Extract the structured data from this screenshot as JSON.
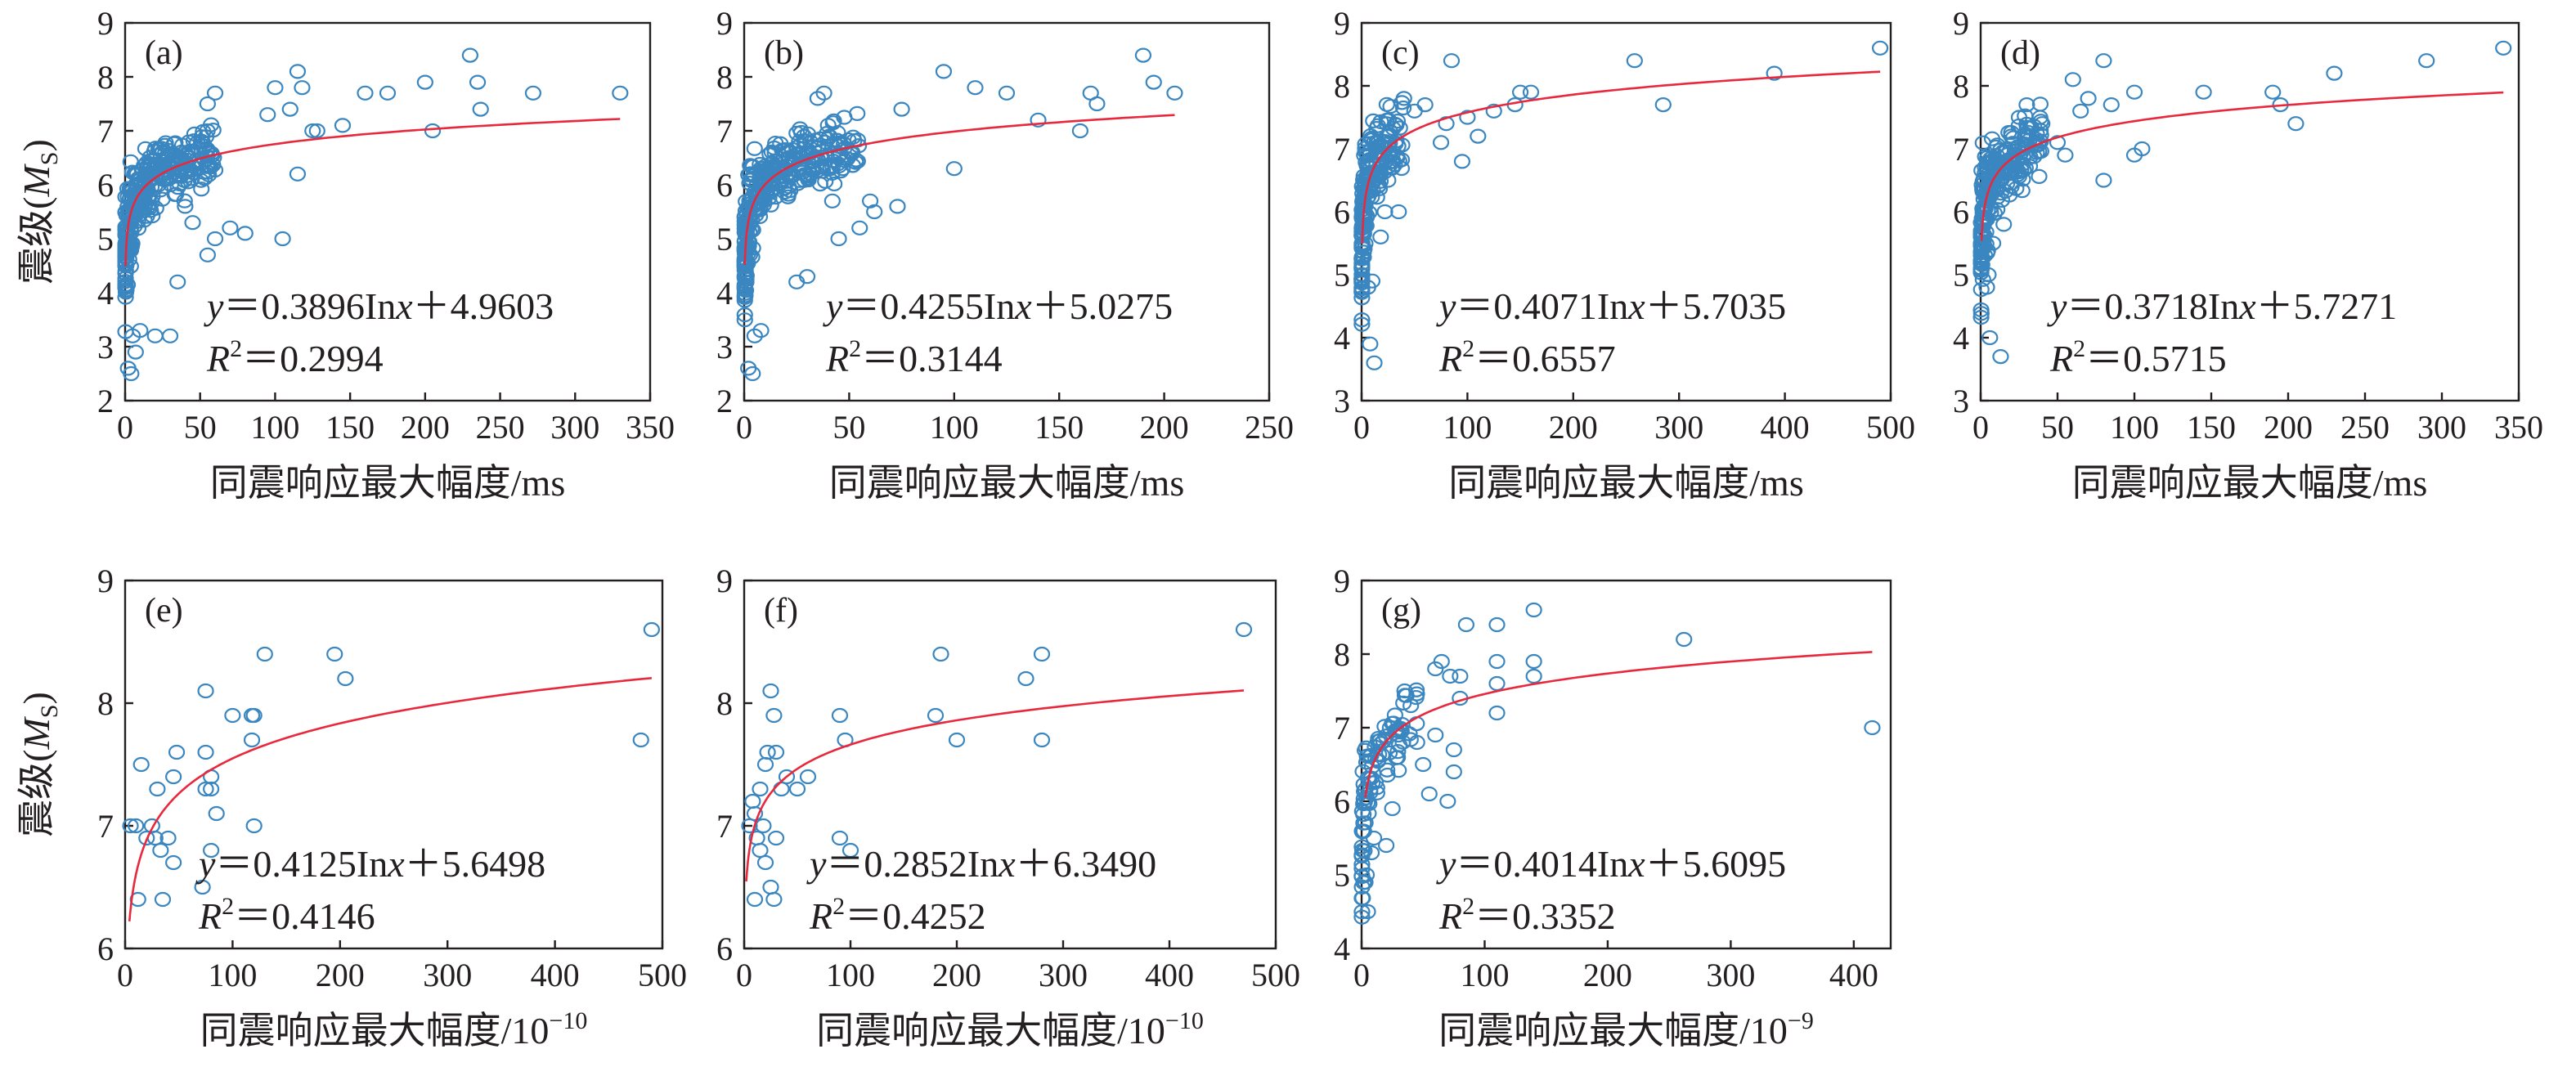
{
  "figure": {
    "ylabel_main": "震级",
    "ylabel_open": "(",
    "ylabel_var": "M",
    "ylabel_sub": "S",
    "ylabel_close": ")"
  },
  "colors": {
    "points": "#3a86c0",
    "fit": "#e8283c",
    "axes": "#231f20"
  },
  "chart_data": [
    {
      "type": "scatter",
      "panel": "(a)",
      "xlabel": "同震响应最大幅度/ms",
      "x_ticks": [
        "0",
        "50",
        "100",
        "150",
        "200",
        "250",
        "300",
        "350"
      ],
      "y_ticks": [
        "2",
        "3",
        "4",
        "5",
        "6",
        "7",
        "8",
        "9"
      ],
      "xlim": [
        0,
        350
      ],
      "ylim": [
        2,
        9
      ],
      "fit": {
        "a": 0.3896,
        "b": 4.9603,
        "x_range": [
          0.3,
          330
        ]
      },
      "equation_lhs": "y",
      "equation_eq": "＝0.3896In",
      "equation_var": "x",
      "equation_rest": "＋4.9603",
      "r2_label": "R",
      "r2_exp": "2",
      "r2_value": "＝0.2994",
      "extra_points": [
        [
          230,
          8.4
        ],
        [
          235,
          7.9
        ],
        [
          237,
          7.4
        ],
        [
          272,
          7.7
        ],
        [
          330,
          7.7
        ],
        [
          200,
          7.9
        ],
        [
          205,
          7.0
        ],
        [
          160,
          7.7
        ],
        [
          175,
          7.7
        ],
        [
          115,
          8.1
        ],
        [
          118,
          7.8
        ],
        [
          110,
          7.4
        ],
        [
          125,
          7.0
        ],
        [
          128,
          7.0
        ],
        [
          100,
          7.8
        ],
        [
          115,
          6.2
        ],
        [
          95,
          7.3
        ],
        [
          55,
          7.5
        ],
        [
          60,
          7.7
        ],
        [
          48,
          6.4
        ],
        [
          45,
          5.3
        ],
        [
          60,
          5.0
        ],
        [
          70,
          5.2
        ],
        [
          55,
          4.7
        ],
        [
          35,
          4.2
        ],
        [
          30,
          3.2
        ],
        [
          5,
          3.2
        ],
        [
          10,
          3.3
        ],
        [
          4,
          2.5
        ],
        [
          2,
          2.6
        ],
        [
          7,
          2.9
        ],
        [
          105,
          5.0
        ],
        [
          80,
          5.1
        ],
        [
          145,
          7.1
        ],
        [
          20,
          3.2
        ],
        [
          40,
          5.6
        ]
      ],
      "cluster": {
        "n": 320,
        "xmax": 60,
        "seed": 11
      }
    },
    {
      "type": "scatter",
      "panel": "(b)",
      "xlabel": "同震响应最大幅度/ms",
      "x_ticks": [
        "0",
        "50",
        "100",
        "150",
        "200",
        "250"
      ],
      "y_ticks": [
        "2",
        "3",
        "4",
        "5",
        "6",
        "7",
        "8",
        "9"
      ],
      "xlim": [
        0,
        250
      ],
      "ylim": [
        2,
        9
      ],
      "fit": {
        "a": 0.4255,
        "b": 5.0275,
        "x_range": [
          0.3,
          205
        ]
      },
      "equation_lhs": "y",
      "equation_eq": "＝0.4255In",
      "equation_var": "x",
      "equation_rest": "＋5.0275",
      "r2_label": "R",
      "r2_exp": "2",
      "r2_value": "＝0.3144",
      "extra_points": [
        [
          190,
          8.4
        ],
        [
          195,
          7.9
        ],
        [
          205,
          7.7
        ],
        [
          165,
          7.7
        ],
        [
          168,
          7.5
        ],
        [
          160,
          7.0
        ],
        [
          95,
          8.1
        ],
        [
          110,
          7.8
        ],
        [
          100,
          6.3
        ],
        [
          75,
          7.4
        ],
        [
          73,
          5.6
        ],
        [
          60,
          5.7
        ],
        [
          62,
          5.5
        ],
        [
          55,
          5.2
        ],
        [
          45,
          5.0
        ],
        [
          42,
          5.7
        ],
        [
          30,
          4.3
        ],
        [
          25,
          4.2
        ],
        [
          5,
          3.2
        ],
        [
          8,
          3.3
        ],
        [
          4,
          2.5
        ],
        [
          2,
          2.6
        ],
        [
          125,
          7.7
        ],
        [
          140,
          7.2
        ],
        [
          35,
          7.6
        ],
        [
          38,
          7.7
        ]
      ],
      "cluster": {
        "n": 330,
        "xmax": 55,
        "seed": 23
      }
    },
    {
      "type": "scatter",
      "panel": "(c)",
      "xlabel": "同震响应最大幅度/ms",
      "x_ticks": [
        "0",
        "100",
        "200",
        "300",
        "400",
        "500"
      ],
      "y_ticks": [
        "3",
        "4",
        "5",
        "6",
        "7",
        "8",
        "9"
      ],
      "xlim": [
        0,
        500
      ],
      "ylim": [
        3,
        9
      ],
      "fit": {
        "a": 0.4071,
        "b": 5.7035,
        "x_range": [
          0.6,
          490
        ]
      },
      "equation_lhs": "y",
      "equation_eq": "＝0.4071In",
      "equation_var": "x",
      "equation_rest": "＋5.7035",
      "r2_label": "R",
      "r2_exp": "2",
      "r2_value": "＝0.6557",
      "extra_points": [
        [
          490,
          8.6
        ],
        [
          390,
          8.2
        ],
        [
          285,
          7.7
        ],
        [
          258,
          8.4
        ],
        [
          160,
          7.9
        ],
        [
          150,
          7.9
        ],
        [
          145,
          7.7
        ],
        [
          125,
          7.6
        ],
        [
          100,
          7.5
        ],
        [
          110,
          7.2
        ],
        [
          95,
          6.8
        ],
        [
          80,
          7.4
        ],
        [
          85,
          8.4
        ],
        [
          40,
          7.8
        ],
        [
          35,
          6.0
        ],
        [
          8,
          3.9
        ],
        [
          12,
          3.6
        ],
        [
          6,
          4.8
        ],
        [
          10,
          4.9
        ],
        [
          18,
          5.6
        ],
        [
          22,
          6.0
        ],
        [
          25,
          6.5
        ],
        [
          30,
          6.8
        ],
        [
          50,
          7.6
        ],
        [
          60,
          7.7
        ],
        [
          75,
          7.1
        ]
      ],
      "cluster": {
        "n": 200,
        "xmax": 40,
        "seed": 37
      }
    },
    {
      "type": "scatter",
      "panel": "(d)",
      "xlabel": "同震响应最大幅度/ms",
      "x_ticks": [
        "0",
        "50",
        "100",
        "150",
        "200",
        "250",
        "300",
        "350"
      ],
      "y_ticks": [
        "3",
        "4",
        "5",
        "6",
        "7",
        "8",
        "9"
      ],
      "xlim": [
        0,
        350
      ],
      "ylim": [
        3,
        9
      ],
      "fit": {
        "a": 0.3718,
        "b": 5.7271,
        "x_range": [
          0.6,
          340
        ]
      },
      "equation_lhs": "y",
      "equation_eq": "＝0.3718In",
      "equation_var": "x",
      "equation_rest": "＋5.7271",
      "r2_label": "R",
      "r2_exp": "2",
      "r2_value": "＝0.5715",
      "extra_points": [
        [
          340,
          8.6
        ],
        [
          290,
          8.4
        ],
        [
          230,
          8.2
        ],
        [
          190,
          7.9
        ],
        [
          195,
          7.7
        ],
        [
          205,
          7.4
        ],
        [
          145,
          7.9
        ],
        [
          100,
          7.9
        ],
        [
          105,
          7.0
        ],
        [
          100,
          6.9
        ],
        [
          85,
          7.7
        ],
        [
          80,
          6.5
        ],
        [
          80,
          8.4
        ],
        [
          70,
          7.8
        ],
        [
          65,
          7.6
        ],
        [
          60,
          8.1
        ],
        [
          55,
          6.9
        ],
        [
          50,
          7.1
        ],
        [
          40,
          7.4
        ],
        [
          30,
          7.7
        ],
        [
          6,
          4.0
        ],
        [
          13,
          3.7
        ],
        [
          4,
          4.8
        ],
        [
          5,
          5.0
        ],
        [
          8,
          5.5
        ],
        [
          15,
          5.8
        ],
        [
          20,
          6.4
        ],
        [
          25,
          7.5
        ]
      ],
      "cluster": {
        "n": 230,
        "xmax": 40,
        "seed": 41
      }
    },
    {
      "type": "scatter",
      "panel": "(e)",
      "xlabel": "同震响应最大幅度/10",
      "xlabel_exp": "−10",
      "x_ticks": [
        "0",
        "100",
        "200",
        "300",
        "400",
        "500"
      ],
      "y_ticks": [
        "6",
        "7",
        "8",
        "9"
      ],
      "xlim": [
        0,
        500
      ],
      "ylim": [
        6,
        9
      ],
      "fit": {
        "a": 0.4125,
        "b": 5.6498,
        "x_range": [
          4,
          490
        ]
      },
      "equation_lhs": "y",
      "equation_eq": "＝0.4125In",
      "equation_var": "x",
      "equation_rest": "＋5.6498",
      "r2_label": "R",
      "r2_exp": "2",
      "r2_value": "＝0.4146",
      "extra_points": [
        [
          490,
          8.6
        ],
        [
          480,
          7.7
        ],
        [
          205,
          8.2
        ],
        [
          195,
          8.4
        ],
        [
          130,
          8.4
        ],
        [
          120,
          7.9
        ],
        [
          118,
          7.9
        ],
        [
          118,
          7.7
        ],
        [
          120,
          7.0
        ],
        [
          100,
          7.9
        ],
        [
          75,
          8.1
        ],
        [
          75,
          7.6
        ],
        [
          80,
          7.4
        ],
        [
          80,
          7.3
        ],
        [
          75,
          7.3
        ],
        [
          85,
          7.1
        ],
        [
          72,
          6.5
        ],
        [
          80,
          6.8
        ],
        [
          48,
          7.6
        ],
        [
          45,
          7.4
        ],
        [
          40,
          6.9
        ],
        [
          45,
          6.7
        ],
        [
          33,
          6.8
        ],
        [
          30,
          7.3
        ],
        [
          28,
          6.9
        ],
        [
          15,
          7.5
        ],
        [
          10,
          7.0
        ],
        [
          5,
          7.0
        ],
        [
          12,
          6.4
        ],
        [
          35,
          6.4
        ],
        [
          25,
          7.0
        ],
        [
          20,
          6.9
        ]
      ],
      "cluster": {
        "n": 0,
        "xmax": 0,
        "seed": 5
      }
    },
    {
      "type": "scatter",
      "panel": "(f)",
      "xlabel": "同震响应最大幅度/10",
      "xlabel_exp": "−10",
      "x_ticks": [
        "0",
        "100",
        "200",
        "300",
        "400",
        "500"
      ],
      "y_ticks": [
        "6",
        "7",
        "8",
        "9"
      ],
      "xlim": [
        0,
        500
      ],
      "ylim": [
        6,
        9
      ],
      "fit": {
        "a": 0.2852,
        "b": 6.349,
        "x_range": [
          2,
          470
        ]
      },
      "equation_lhs": "y",
      "equation_eq": "＝0.2852In",
      "equation_var": "x",
      "equation_rest": "＋6.3490",
      "r2_label": "R",
      "r2_exp": "2",
      "r2_value": "＝0.4252",
      "extra_points": [
        [
          470,
          8.6
        ],
        [
          280,
          8.4
        ],
        [
          265,
          8.2
        ],
        [
          280,
          7.7
        ],
        [
          185,
          8.4
        ],
        [
          180,
          7.9
        ],
        [
          200,
          7.7
        ],
        [
          90,
          7.9
        ],
        [
          95,
          7.7
        ],
        [
          90,
          6.9
        ],
        [
          100,
          6.8
        ],
        [
          60,
          7.4
        ],
        [
          50,
          7.3
        ],
        [
          40,
          7.4
        ],
        [
          35,
          7.3
        ],
        [
          25,
          8.1
        ],
        [
          28,
          7.9
        ],
        [
          30,
          7.6
        ],
        [
          22,
          7.6
        ],
        [
          20,
          7.5
        ],
        [
          15,
          7.3
        ],
        [
          10,
          7.1
        ],
        [
          5,
          7.0
        ],
        [
          12,
          6.9
        ],
        [
          20,
          6.7
        ],
        [
          25,
          6.5
        ],
        [
          28,
          6.4
        ],
        [
          10,
          6.4
        ],
        [
          15,
          6.8
        ],
        [
          30,
          6.9
        ],
        [
          8,
          7.2
        ],
        [
          18,
          7.0
        ]
      ],
      "cluster": {
        "n": 0,
        "xmax": 0,
        "seed": 7
      }
    },
    {
      "type": "scatter",
      "panel": "(g)",
      "xlabel": "同震响应最大幅度/10",
      "xlabel_exp": "−9",
      "x_ticks": [
        "0",
        "100",
        "200",
        "300",
        "400"
      ],
      "y_ticks": [
        "4",
        "5",
        "6",
        "7",
        "8",
        "9"
      ],
      "xlim": [
        0,
        430
      ],
      "ylim": [
        4,
        9
      ],
      "fit": {
        "a": 0.4014,
        "b": 5.6095,
        "x_range": [
          3,
          415
        ]
      },
      "equation_lhs": "y",
      "equation_eq": "＝0.4014In",
      "equation_var": "x",
      "equation_rest": "＋5.6095",
      "r2_label": "R",
      "r2_exp": "2",
      "r2_value": "＝0.3352",
      "extra_points": [
        [
          415,
          7.0
        ],
        [
          262,
          8.2
        ],
        [
          140,
          8.6
        ],
        [
          140,
          7.9
        ],
        [
          140,
          7.7
        ],
        [
          110,
          8.4
        ],
        [
          110,
          7.9
        ],
        [
          110,
          7.6
        ],
        [
          110,
          7.2
        ],
        [
          85,
          8.4
        ],
        [
          80,
          7.7
        ],
        [
          65,
          7.9
        ],
        [
          72,
          7.7
        ],
        [
          60,
          7.8
        ],
        [
          80,
          7.4
        ],
        [
          75,
          6.7
        ],
        [
          75,
          6.4
        ],
        [
          70,
          6.0
        ],
        [
          55,
          6.1
        ],
        [
          50,
          6.5
        ],
        [
          45,
          6.8
        ],
        [
          40,
          7.3
        ],
        [
          35,
          7.5
        ],
        [
          4,
          5.0
        ],
        [
          3,
          4.9
        ],
        [
          5,
          4.5
        ],
        [
          8,
          5.3
        ],
        [
          10,
          5.5
        ],
        [
          20,
          5.4
        ],
        [
          25,
          5.9
        ],
        [
          30,
          6.9
        ],
        [
          60,
          6.9
        ]
      ],
      "cluster": {
        "n": 90,
        "xmax": 45,
        "seed": 53
      }
    }
  ]
}
